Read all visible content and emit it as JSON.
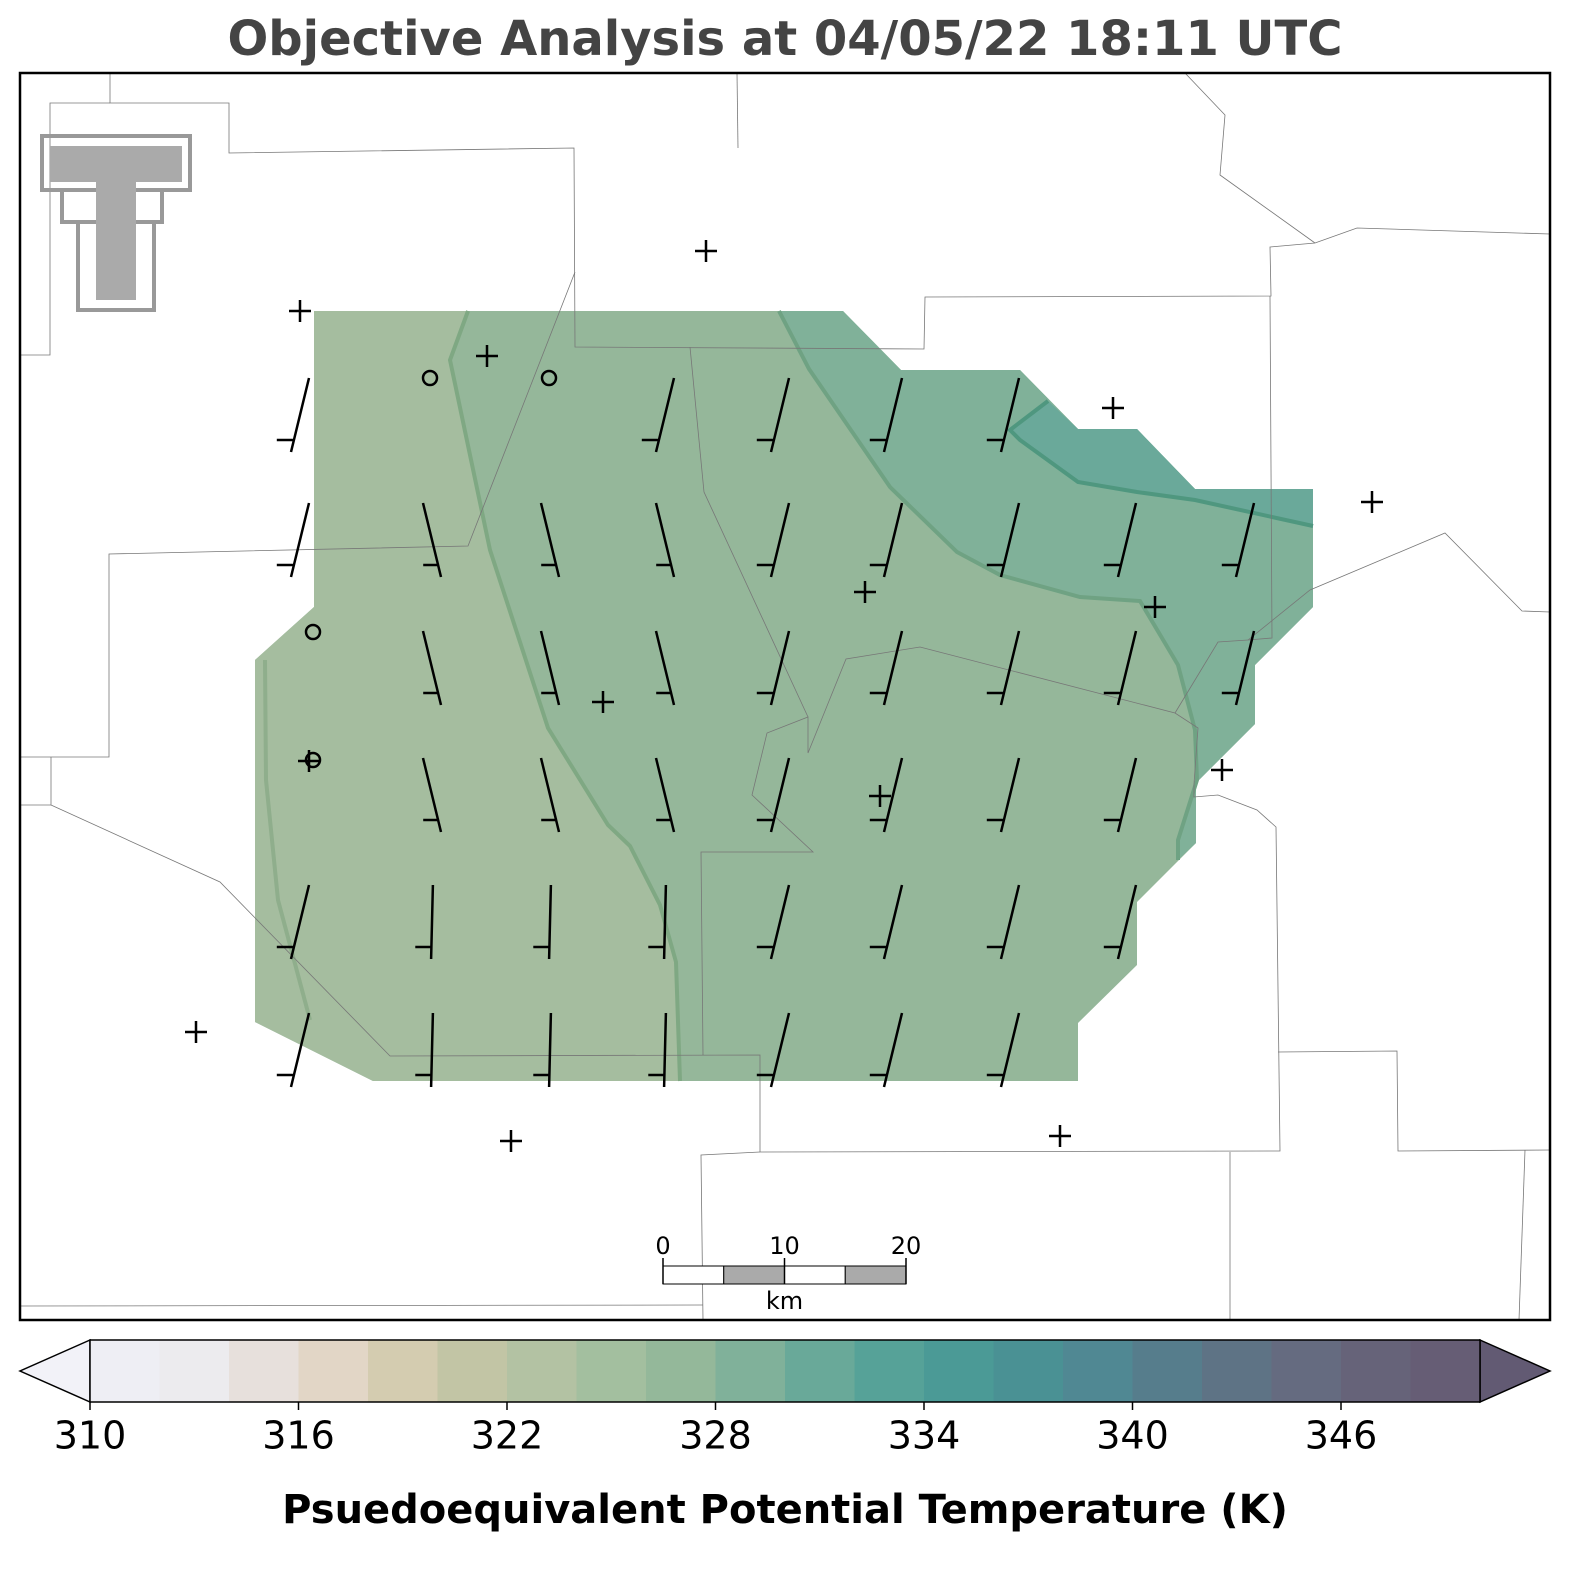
{
  "chart_data": {
    "type": "map",
    "title": "Objective Analysis at 04/05/22 18:11 UTC",
    "colorbar": {
      "label": "Psuedoequivalent Potential Temperature (K)",
      "lim": [
        310,
        350
      ],
      "ticks": [
        310,
        316,
        322,
        328,
        334,
        340,
        346
      ],
      "levels": [
        310,
        312,
        314,
        316,
        318,
        320,
        322,
        324,
        326,
        328,
        330,
        332,
        334,
        336,
        338,
        340,
        342,
        344,
        346,
        348,
        350
      ],
      "colors": [
        "#eeeef4",
        "#ecebee",
        "#e7e0dc",
        "#e2d6c6",
        "#d4ccb0",
        "#c2c5a5",
        "#b3c2a3",
        "#a3bf9f",
        "#94b89a",
        "#80b19a",
        "#69a999",
        "#56a298",
        "#4b9a96",
        "#4a9194",
        "#508893",
        "#567d8c",
        "#5e7385",
        "#656b80",
        "#666379",
        "#665d75"
      ],
      "under_color": "#f2f2f8",
      "over_color": "#625a73"
    },
    "scale_bar": {
      "ticks": [
        0,
        10,
        20
      ],
      "unit": "km"
    }
  }
}
